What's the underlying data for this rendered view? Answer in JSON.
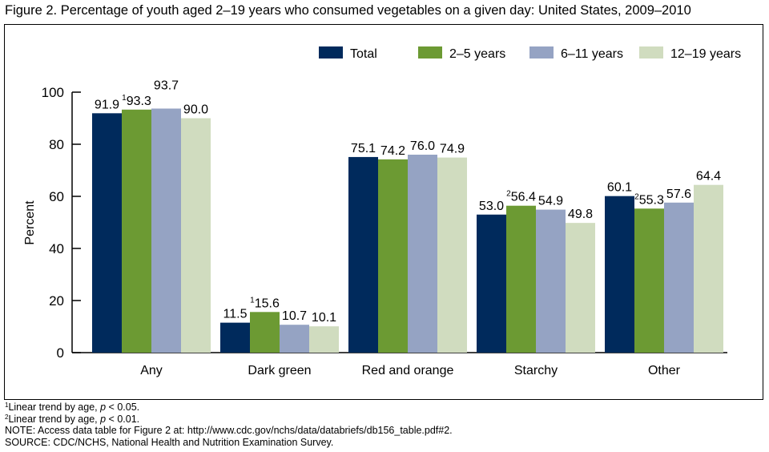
{
  "chart_data": {
    "type": "bar",
    "title": "Figure 2. Percentage of youth aged 2–19 years who consumed vegetables on a given day: United States, 2009–2010",
    "xlabel": "",
    "ylabel": "Percent",
    "ylim": [
      0,
      100
    ],
    "yticks": [
      0,
      20,
      40,
      60,
      80,
      100
    ],
    "grid": false,
    "legend_position": "top-right",
    "categories": [
      "Any",
      "Dark green",
      "Red and orange",
      "Starchy",
      "Other"
    ],
    "series": [
      {
        "name": "Total",
        "color": "#002a5c",
        "values": [
          91.9,
          11.5,
          75.1,
          53.0,
          60.1
        ],
        "markers": [
          "",
          "",
          "",
          "",
          ""
        ]
      },
      {
        "name": "2–5 years",
        "color": "#6c9a33",
        "values": [
          93.3,
          15.6,
          74.2,
          56.4,
          55.3
        ],
        "markers": [
          "1",
          "1",
          "",
          "2",
          "2"
        ]
      },
      {
        "name": "6–11 years",
        "color": "#95a3c3",
        "values": [
          93.7,
          10.7,
          76.0,
          54.9,
          57.6
        ],
        "markers": [
          "",
          "",
          "",
          "",
          ""
        ]
      },
      {
        "name": "12–19 years",
        "color": "#d0dcbf",
        "values": [
          90.0,
          10.1,
          74.9,
          49.8,
          64.4
        ],
        "markers": [
          "",
          "",
          "",
          "",
          ""
        ]
      }
    ]
  },
  "footnotes": {
    "f1_mark": "1",
    "f1_a": "Linear trend by age, ",
    "f1_p": "p",
    "f1_b": " < 0.05.",
    "f2_mark": "2",
    "f2_a": "Linear trend by age, ",
    "f2_p": "p",
    "f2_b": " < 0.01.",
    "note": "NOTE: Access data table for Figure 2 at: http://www.cdc.gov/nchs/data/databriefs/db156_table.pdf#2.",
    "source": "SOURCE: CDC/NCHS, National Health and Nutrition Examination Survey."
  }
}
